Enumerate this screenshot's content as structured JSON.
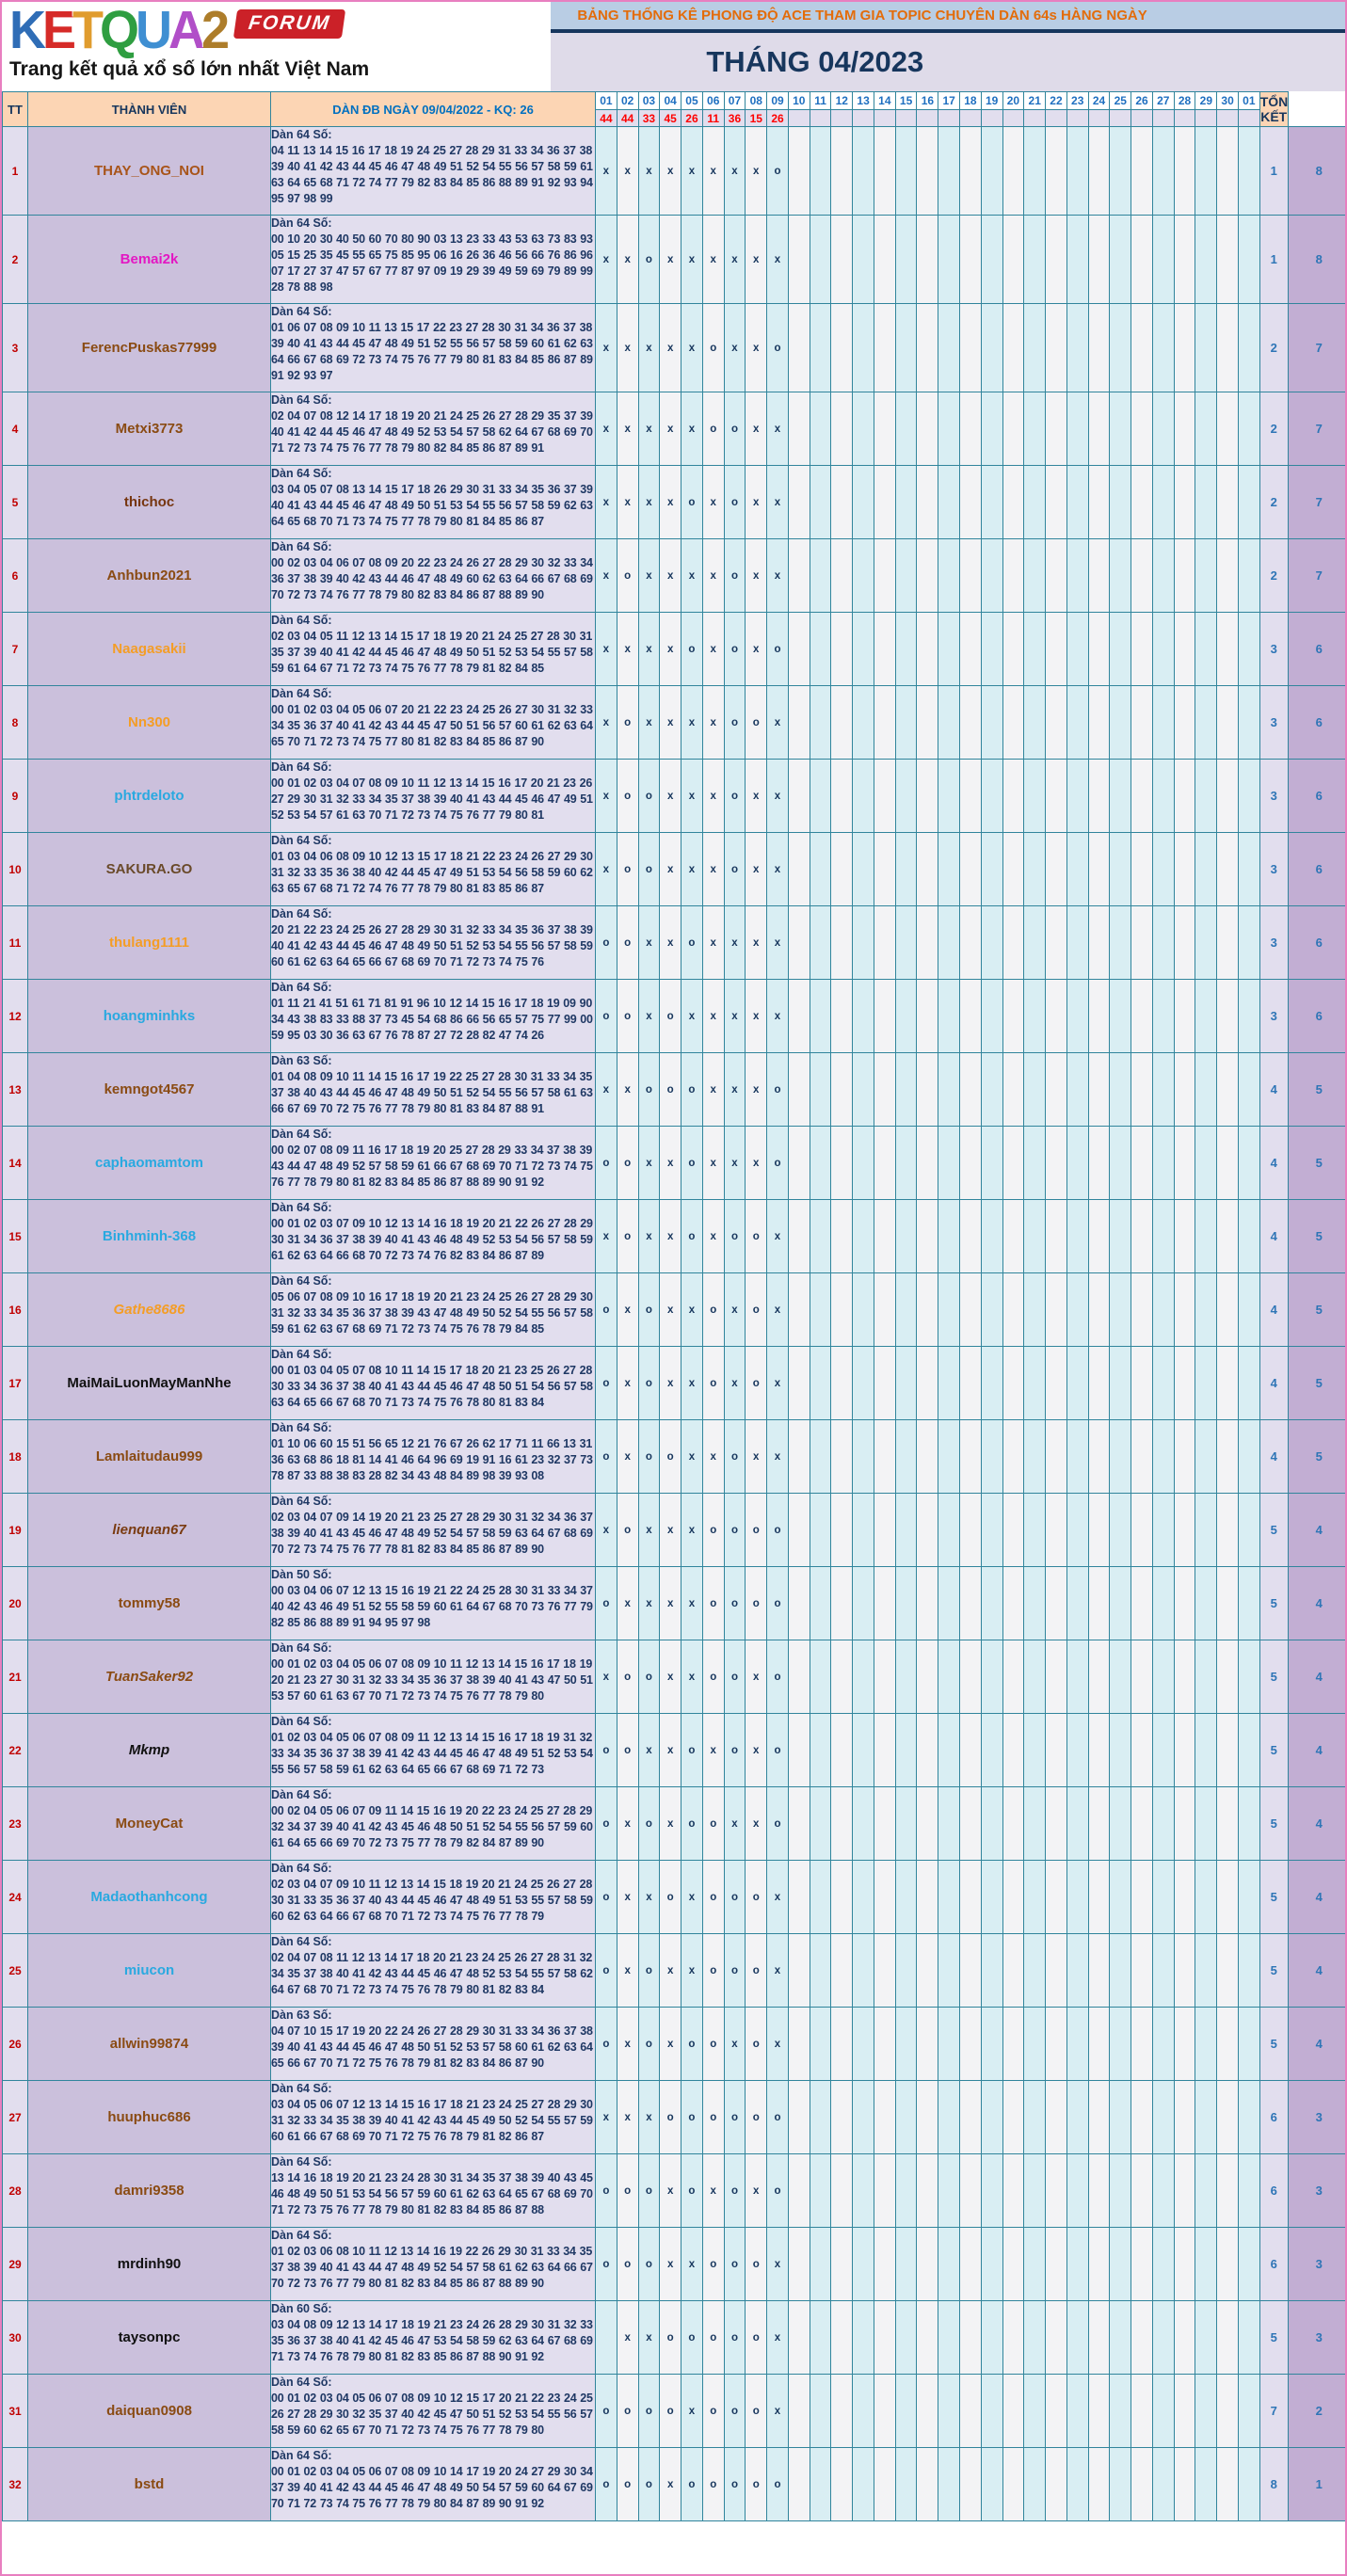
{
  "logo": {
    "letters": [
      {
        "ch": "K",
        "color": "#2f6db6"
      },
      {
        "ch": "E",
        "color": "#d62b28"
      },
      {
        "ch": "T",
        "color": "#e09c2e"
      },
      {
        "ch": "Q",
        "color": "#2f9e41"
      },
      {
        "ch": "U",
        "color": "#3f8fd2"
      },
      {
        "ch": "A",
        "color": "#b14fc8"
      },
      {
        "ch": "2",
        "color": "#ad7d2a"
      }
    ],
    "badge": "FORUM",
    "tagline": "Trang kết quả xổ số lớn nhất Việt Nam"
  },
  "banner": {
    "title": "BẢNG THỐNG KÊ PHONG ĐỘ ACE THAM GIA TOPIC CHUYÊN DÀN 64s HÀNG NGÀY",
    "month": "THÁNG 04/2023"
  },
  "table": {
    "headers": {
      "tt": "TT",
      "member": "THÀNH VIÊN",
      "dan": "DÀN ĐB NGÀY 09/04/2022 - KQ: 26",
      "total": "TỔNG KẾT"
    },
    "day_columns": [
      "01",
      "02",
      "03",
      "04",
      "05",
      "06",
      "07",
      "08",
      "09",
      "10",
      "11",
      "12",
      "13",
      "14",
      "15",
      "16",
      "17",
      "18",
      "19",
      "20",
      "21",
      "22",
      "23",
      "24",
      "25",
      "26",
      "27",
      "28",
      "29",
      "30",
      "01"
    ],
    "day_results": [
      "44",
      "44",
      "33",
      "45",
      "26",
      "11",
      "36",
      "15",
      "26"
    ],
    "rows": [
      {
        "tt": "1",
        "name": "THAY_ONG_NOI",
        "color": "#a85419",
        "italic": false,
        "dan_label": "Dàn 64 Số:",
        "numbers": "04 11 13 14 15 16 17 18 19 24 25 27 28 29 31 33 34 36 37 38 39 40 41 42 43 44 45 46 47 48 49 51 52 54 55 56 57 58 59 61 63 64 65 68 71 72 74 77 79 82 83 84 85 86 88 89 91 92 93 94 95 97 98 99",
        "marks": [
          "x",
          "x",
          "x",
          "x",
          "x",
          "x",
          "x",
          "x",
          "o"
        ],
        "total1": "1",
        "total2": "8"
      },
      {
        "tt": "2",
        "name": "Bemai2k",
        "color": "#e317c3",
        "italic": false,
        "dan_label": "Dàn 64 Số:",
        "numbers": "00 10 20 30 40 50 60 70 80 90 03 13 23 33 43 53 63 73 83 93 05 15 25 35 45 55 65 75 85 95 06 16 26 36 46 56 66 76 86 96 07 17 27 37 47 57 67 77 87 97 09 19 29 39 49 59 69 79 89 99 28 78 88 98",
        "marks": [
          "x",
          "x",
          "o",
          "x",
          "x",
          "x",
          "x",
          "x",
          "x"
        ],
        "total1": "1",
        "total2": "8"
      },
      {
        "tt": "3",
        "name": "FerencPuskas77999",
        "color": "#8a4b13",
        "italic": false,
        "dan_label": "Dàn 64 Số:",
        "numbers": "01 06 07 08 09 10 11 13 15 17 22 23 27 28 30 31 34 36 37 38 39 40 41 43 44 45 47 48 49 51 52 55 56 57 58 59 60 61 62 63 64 66 67 68 69 72 73 74 75 76 77 79 80 81 83 84 85 86 87 89 91 92 93 97",
        "marks": [
          "x",
          "x",
          "x",
          "x",
          "x",
          "o",
          "x",
          "x",
          "o"
        ],
        "total1": "2",
        "total2": "7"
      },
      {
        "tt": "4",
        "name": "Metxi3773",
        "color": "#8a4b13",
        "italic": false,
        "dan_label": "Dàn 64 Số:",
        "numbers": "02 04 07 08 12 14 17 18 19 20 21 24 25 26 27 28 29 35 37 39 40 41 42 44 45 46 47 48 49 52 53 54 57 58 62 64 67 68 69 70 71 72 73 74 75 76 77 78 79 80 82 84 85 86 87 89 91",
        "marks": [
          "x",
          "x",
          "x",
          "x",
          "x",
          "o",
          "o",
          "x",
          "x"
        ],
        "total1": "2",
        "total2": "7"
      },
      {
        "tt": "5",
        "name": "thichoc",
        "color": "#76350f",
        "italic": false,
        "dan_label": "Dàn 64 Số:",
        "numbers": "03 04 05 07 08 13 14 15 17 18 26 29 30 31 33 34 35 36 37 39 40 41 43 44 45 46 47 48 49 50 51 53 54 55 56 57 58 59 62 63 64 65 68 70 71 73 74 75 77 78 79 80 81 84 85 86 87",
        "marks": [
          "x",
          "x",
          "x",
          "x",
          "o",
          "x",
          "o",
          "x",
          "x"
        ],
        "total1": "2",
        "total2": "7"
      },
      {
        "tt": "6",
        "name": "Anhbun2021",
        "color": "#8a4b13",
        "italic": false,
        "dan_label": "Dàn 64 Số:",
        "numbers": "00 02 03 04 06 07 08 09 20 22 23 24 26 27 28 29 30 32 33 34 36 37 38 39 40 42 43 44 46 47 48 49 60 62 63 64 66 67 68 69 70 72 73 74 76 77 78 79 80 82 83 84 86 87 88 89 90",
        "marks": [
          "x",
          "o",
          "x",
          "x",
          "x",
          "x",
          "o",
          "x",
          "x"
        ],
        "total1": "2",
        "total2": "7"
      },
      {
        "tt": "7",
        "name": "Naagasakii",
        "color": "#f49d26",
        "italic": false,
        "dan_label": "Dàn 64 Số:",
        "numbers": "02 03 04 05 11 12 13 14 15 17 18 19 20 21 24 25 27 28 30 31 35 37 39 40 41 42 44 45 46 47 48 49 50 51 52 53 54 55 57 58 59 61 64 67 71 72 73 74 75 76 77 78 79 81 82 84 85",
        "marks": [
          "x",
          "x",
          "x",
          "x",
          "o",
          "x",
          "o",
          "x",
          "o"
        ],
        "total1": "3",
        "total2": "6"
      },
      {
        "tt": "8",
        "name": "Nn300",
        "color": "#f49d26",
        "italic": false,
        "dan_label": "Dàn 64 Số:",
        "numbers": "00 01 02 03 04 05 06 07 20 21 22 23 24 25 26 27 30 31 32 33 34 35 36 37 40 41 42 43 44 45 47 50 51 56 57 60 61 62 63 64 65 70 71 72 73 74 75 77 80 81 82 83 84 85 86 87 90",
        "marks": [
          "x",
          "o",
          "x",
          "x",
          "x",
          "x",
          "o",
          "o",
          "x"
        ],
        "total1": "3",
        "total2": "6"
      },
      {
        "tt": "9",
        "name": "phtrdeloto",
        "color": "#29a9e0",
        "italic": false,
        "dan_label": "Dàn 64 Số:",
        "numbers": "00 01 02 03 04 07 08 09 10 11 12 13 14 15 16 17 20 21 23 26 27 29 30 31 32 33 34 35 37 38 39 40 41 43 44 45 46 47 49 51 52 53 54 57 61 63 70 71 72 73 74 75 76 77 79 80 81",
        "marks": [
          "x",
          "o",
          "o",
          "x",
          "x",
          "x",
          "o",
          "x",
          "x"
        ],
        "total1": "3",
        "total2": "6"
      },
      {
        "tt": "10",
        "name": "SAKURA.GO",
        "color": "#6a4a2a",
        "italic": false,
        "dan_label": "Dàn 64 Số:",
        "numbers": "01 03 04 06 08 09 10 12 13 15 17 18 21 22 23 24 26 27 29 30 31 32 33 35 36 38 40 42 44 45 47 49 51 53 54 56 58 59 60 62 63 65 67 68 71 72 74 76 77 78 79 80 81 83 85 86 87",
        "marks": [
          "x",
          "o",
          "o",
          "x",
          "x",
          "x",
          "o",
          "x",
          "x"
        ],
        "total1": "3",
        "total2": "6"
      },
      {
        "tt": "11",
        "name": "thulang1111",
        "color": "#f49d26",
        "italic": false,
        "dan_label": "Dàn 64 Số:",
        "numbers": "20 21 22 23 24 25 26 27 28 29 30 31 32 33 34 35 36 37 38 39 40 41 42 43 44 45 46 47 48 49 50 51 52 53 54 55 56 57 58 59 60 61 62 63 64 65 66 67 68 69 70 71 72 73 74 75 76",
        "marks": [
          "o",
          "o",
          "x",
          "x",
          "o",
          "x",
          "x",
          "x",
          "x"
        ],
        "total1": "3",
        "total2": "6"
      },
      {
        "tt": "12",
        "name": "hoangminhks",
        "color": "#29a9e0",
        "italic": false,
        "dan_label": "Dàn 64 Số:",
        "numbers": "01 11 21 41 51 61 71 81 91 96 10 12 14 15 16 17 18 19 09 90 34 43 38 83 33 88 37 73 45 54 68 86 66 56 65 57 75 77 99 00 59 95 03 30 36 63 67 76 78 87 27 72 28 82 47 74 26",
        "marks": [
          "o",
          "o",
          "x",
          "o",
          "x",
          "x",
          "x",
          "x",
          "x"
        ],
        "total1": "3",
        "total2": "6"
      },
      {
        "tt": "13",
        "name": "kemngot4567",
        "color": "#8a4b13",
        "italic": false,
        "dan_label": "Dàn 63 Số:",
        "numbers": "01 04 08 09 10 11 14 15 16 17 19 22 25 27 28 30 31 33 34 35 37 38 40 43 44 45 46 47 48 49 50 51 52 54 55 56 57 58 61 63 66 67 69 70 72 75 76 77 78 79 80 81 83 84 87 88 91",
        "marks": [
          "x",
          "x",
          "o",
          "o",
          "o",
          "x",
          "x",
          "x",
          "o"
        ],
        "total1": "4",
        "total2": "5"
      },
      {
        "tt": "14",
        "name": "caphaomamtom",
        "color": "#29a9e0",
        "italic": false,
        "dan_label": "Dàn 64 Số:",
        "numbers": "00 02 07 08 09 11 16 17 18 19 20 25 27 28 29 33 34 37 38 39 43 44 47 48 49 52 57 58 59 61 66 67 68 69 70 71 72 73 74 75 76 77 78 79 80 81 82 83 84 85 86 87 88 89 90 91 92",
        "marks": [
          "o",
          "o",
          "x",
          "x",
          "o",
          "x",
          "x",
          "x",
          "o"
        ],
        "total1": "4",
        "total2": "5"
      },
      {
        "tt": "15",
        "name": "Binhminh-368",
        "color": "#29a9e0",
        "italic": false,
        "dan_label": "Dàn 64 Số:",
        "numbers": "00 01 02 03 07 09 10 12 13 14 16 18 19 20 21 22 26 27 28 29 30 31 34 36 37 38 39 40 41 43 46 48 49 52 53 54 56 57 58 59 61 62 63 64 66 68 70 72 73 74 76 82 83 84 86 87 89",
        "marks": [
          "x",
          "o",
          "x",
          "x",
          "o",
          "x",
          "o",
          "o",
          "x"
        ],
        "total1": "4",
        "total2": "5"
      },
      {
        "tt": "16",
        "name": "Gathe8686",
        "color": "#f49d26",
        "italic": true,
        "dan_label": "Dàn 64 Số:",
        "numbers": "05 06 07 08 09 10 16 17 18 19 20 21 23 24 25 26 27 28 29 30 31 32 33 34 35 36 37 38 39 43 47 48 49 50 52 54 55 56 57 58 59 61 62 63 67 68 69 71 72 73 74 75 76 78 79 84 85",
        "marks": [
          "o",
          "x",
          "o",
          "x",
          "x",
          "o",
          "x",
          "o",
          "x"
        ],
        "total1": "4",
        "total2": "5"
      },
      {
        "tt": "17",
        "name": "MaiMaiLuonMayManNhe",
        "color": "#111111",
        "italic": false,
        "dan_label": "Dàn 64 Số:",
        "numbers": "00 01 03 04 05 07 08 10 11 14 15 17 18 20 21 23 25 26 27 28 30 33 34 36 37 38 40 41 43 44 45 46 47 48 50 51 54 56 57 58 63 64 65 66 67 68 70 71 73 74 75 76 78 80 81 83 84",
        "marks": [
          "o",
          "x",
          "o",
          "x",
          "x",
          "o",
          "x",
          "o",
          "x"
        ],
        "total1": "4",
        "total2": "5"
      },
      {
        "tt": "18",
        "name": "Lamlaitudau999",
        "color": "#8a4b13",
        "italic": false,
        "dan_label": "Dàn 64 Số:",
        "numbers": "01 10 06 60 15 51 56 65 12 21 76 67 26 62 17 71 11 66 13 31 36 63 68 86 18 81 14 41 46 64 96 69 19 91 16 61 23 32 37 73 78 87 33 88 38 83 28 82 34 43 48 84 89 98 39 93 08",
        "marks": [
          "o",
          "x",
          "o",
          "o",
          "x",
          "x",
          "o",
          "x",
          "x"
        ],
        "total1": "4",
        "total2": "5"
      },
      {
        "tt": "19",
        "name": "lienquan67",
        "color": "#7a3b11",
        "italic": true,
        "dan_label": "Dàn 64 Số:",
        "numbers": "02 03 04 07 09 14 19 20 21 23 25 27 28 29 30 31 32 34 36 37 38 39 40 41 43 45 46 47 48 49 52 54 57 58 59 63 64 67 68 69 70 72 73 74 75 76 77 78 81 82 83 84 85 86 87 89 90",
        "marks": [
          "x",
          "o",
          "x",
          "x",
          "x",
          "o",
          "o",
          "o",
          "o"
        ],
        "total1": "5",
        "total2": "4"
      },
      {
        "tt": "20",
        "name": "tommy58",
        "color": "#8a4b13",
        "italic": false,
        "dan_label": "Dàn 50 Số:",
        "numbers": "00 03 04 06 07 12 13 15 16 19 21 22 24 25 28 30 31 33 34 37 40 42 43 46 49 51 52 55 58 59 60 61 64 67 68 70 73 76 77 79 82 85 86 88 89 91 94 95 97 98",
        "marks": [
          "o",
          "x",
          "x",
          "x",
          "x",
          "o",
          "o",
          "o",
          "o"
        ],
        "total1": "5",
        "total2": "4"
      },
      {
        "tt": "21",
        "name": "TuanSaker92",
        "color": "#8a4b13",
        "italic": true,
        "dan_label": "Dàn 64 Số:",
        "numbers": "00 01 02 03 04 05 06 07 08 09 10 11 12 13 14 15 16 17 18 19 20 21 23 27 30 31 32 33 34 35 36 37 38 39 40 41 43 47 50 51 53 57 60 61 63 67 70 71 72 73 74 75 76 77 78 79 80",
        "marks": [
          "x",
          "o",
          "o",
          "x",
          "x",
          "o",
          "o",
          "x",
          "o"
        ],
        "total1": "5",
        "total2": "4"
      },
      {
        "tt": "22",
        "name": "Mkmp",
        "color": "#111111",
        "italic": true,
        "dan_label": "Dàn 64 Số:",
        "numbers": "01 02 03 04 05 06 07 08 09 11 12 13 14 15 16 17 18 19 31 32 33 34 35 36 37 38 39 41 42 43 44 45 46 47 48 49 51 52 53 54 55 56 57 58 59 61 62 63 64 65 66 67 68 69 71 72 73",
        "marks": [
          "o",
          "o",
          "x",
          "x",
          "o",
          "x",
          "o",
          "x",
          "o"
        ],
        "total1": "5",
        "total2": "4"
      },
      {
        "tt": "23",
        "name": "MoneyCat",
        "color": "#8a4b13",
        "italic": false,
        "dan_label": "Dàn 64 Số:",
        "numbers": "00 02 04 05 06 07 09 11 14 15 16 19 20 22 23 24 25 27 28 29 32 34 37 39 40 41 42 43 45 46 48 50 51 52 54 55 56 57 59 60 61 64 65 66 69 70 72 73 75 77 78 79 82 84 87 89 90",
        "marks": [
          "o",
          "x",
          "o",
          "x",
          "o",
          "o",
          "x",
          "x",
          "o"
        ],
        "total1": "5",
        "total2": "4"
      },
      {
        "tt": "24",
        "name": "Madaothanhcong",
        "color": "#29a9e0",
        "italic": false,
        "dan_label": "Dàn 64 Số:",
        "numbers": "02 03 04 07 09 10 11 12 13 14 15 18 19 20 21 24 25 26 27 28 30 31 33 35 36 37 40 43 44 45 46 47 48 49 51 53 55 57 58 59 60 62 63 64 66 67 68 70 71 72 73 74 75 76 77 78 79",
        "marks": [
          "o",
          "x",
          "x",
          "o",
          "x",
          "o",
          "o",
          "o",
          "x"
        ],
        "total1": "5",
        "total2": "4"
      },
      {
        "tt": "25",
        "name": "miucon",
        "color": "#29a9e0",
        "italic": false,
        "dan_label": "Dàn 64 Số:",
        "numbers": "02 04 07 08 11 12 13 14 17 18 20 21 23 24 25 26 27 28 31 32 34 35 37 38 40 41 42 43 44 45 46 47 48 52 53 54 55 57 58 62 64 67 68 70 71 72 73 74 75 76 78 79 80 81 82 83 84",
        "marks": [
          "o",
          "x",
          "o",
          "x",
          "x",
          "o",
          "o",
          "o",
          "x"
        ],
        "total1": "5",
        "total2": "4"
      },
      {
        "tt": "26",
        "name": "allwin99874",
        "color": "#8a4b13",
        "italic": false,
        "dan_label": "Dàn 63 Số:",
        "numbers": "04 07 10 15 17 19 20 22 24 26 27 28 29 30 31 33 34 36 37 38 39 40 41 43 44 45 46 47 48 50 51 52 53 57 58 60 61 62 63 64 65 66 67 70 71 72 75 76 78 79 81 82 83 84 86 87 90",
        "marks": [
          "o",
          "x",
          "o",
          "x",
          "o",
          "o",
          "x",
          "o",
          "x"
        ],
        "total1": "5",
        "total2": "4"
      },
      {
        "tt": "27",
        "name": "huuphuc686",
        "color": "#8a4b13",
        "italic": false,
        "dan_label": "Dàn 64 Số:",
        "numbers": "03 04 05 06 07 12 13 14 15 16 17 18 21 23 24 25 27 28 29 30 31 32 33 34 35 38 39 40 41 42 43 44 45 49 50 52 54 55 57 59 60 61 66 67 68 69 70 71 72 75 76 78 79 81 82 86 87",
        "marks": [
          "x",
          "x",
          "x",
          "o",
          "o",
          "o",
          "o",
          "o",
          "o"
        ],
        "total1": "6",
        "total2": "3"
      },
      {
        "tt": "28",
        "name": "damri9358",
        "color": "#8a4b13",
        "italic": false,
        "dan_label": "Dàn 64 Số:",
        "numbers": "13 14 16 18 19 20 21 23 24 28 30 31 34 35 37 38 39 40 43 45 46 48 49 50 51 53 54 56 57 59 60 61 62 63 64 65 67 68 69 70 71 72 73 75 76 77 78 79 80 81 82 83 84 85 86 87 88",
        "marks": [
          "o",
          "o",
          "o",
          "x",
          "o",
          "x",
          "o",
          "x",
          "o"
        ],
        "total1": "6",
        "total2": "3"
      },
      {
        "tt": "29",
        "name": "mrdinh90",
        "color": "#111111",
        "italic": false,
        "dan_label": "Dàn 64 Số:",
        "numbers": "01 02 03 06 08 10 11 12 13 14 16 19 22 26 29 30 31 33 34 35 37 38 39 40 41 43 44 47 48 49 52 54 57 58 61 62 63 64 66 67 70 72 73 76 77 79 80 81 82 83 84 85 86 87 88 89 90",
        "marks": [
          "o",
          "o",
          "o",
          "x",
          "x",
          "o",
          "o",
          "o",
          "x"
        ],
        "total1": "6",
        "total2": "3"
      },
      {
        "tt": "30",
        "name": "taysonpc",
        "color": "#111111",
        "italic": false,
        "dan_label": "Dàn 60 Số:",
        "numbers": "03 04 08 09 12 13 14 17 18 19 21 23 24 26 28 29 30 31 32 33 35 36 37 38 40 41 42 45 46 47 53 54 58 59 62 63 64 67 68 69 71 73 74 76 78 79 80 81 82 83 85 86 87 88 90 91 92",
        "marks": [
          "",
          "x",
          "x",
          "o",
          "o",
          "o",
          "o",
          "o",
          "x"
        ],
        "total1": "5",
        "total2": "3"
      },
      {
        "tt": "31",
        "name": "daiquan0908",
        "color": "#8a4b13",
        "italic": false,
        "dan_label": "Dàn 64 Số:",
        "numbers": "00 01 02 03 04 05 06 07 08 09 10 12 15 17 20 21 22 23 24 25 26 27 28 29 30 32 35 37 40 42 45 47 50 51 52 53 54 55 56 57 58 59 60 62 65 67 70 71 72 73 74 75 76 77 78 79 80",
        "marks": [
          "o",
          "o",
          "o",
          "o",
          "x",
          "o",
          "o",
          "o",
          "x"
        ],
        "total1": "7",
        "total2": "2"
      },
      {
        "tt": "32",
        "name": "bstd",
        "color": "#8a4b13",
        "italic": false,
        "dan_label": "Dàn 64 Số:",
        "numbers": "00 01 02 03 04 05 06 07 08 09 10 14 17 19 20 24 27 29 30 34 37 39 40 41 42 43 44 45 46 47 48 49 50 54 57 59 60 64 67 69 70 71 72 73 74 75 76 77 78 79 80 84 87 89 90 91 92",
        "marks": [
          "o",
          "o",
          "o",
          "x",
          "o",
          "o",
          "o",
          "o",
          "o"
        ],
        "total1": "8",
        "total2": "1"
      }
    ]
  }
}
